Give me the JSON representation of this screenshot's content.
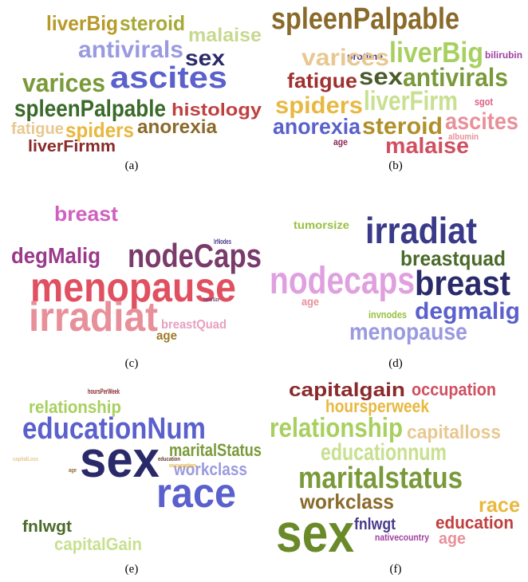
{
  "panels": [
    {
      "caption": "(a)",
      "words": [
        "liverBig",
        "steroid",
        "malaise",
        "antivirals",
        "sex",
        "ascites",
        "varices",
        "spleenPalpable",
        "histology",
        "fatigue",
        "spiders",
        "anorexia",
        "liverFirmm"
      ]
    },
    {
      "caption": "(b)",
      "words": [
        "spleenPalpable",
        "protime",
        "varices",
        "liverBig",
        "bilirubin",
        "fatigue",
        "sex",
        "antivirals",
        "spiders",
        "liverFirm",
        "sgot",
        "anorexia",
        "steroid",
        "ascites",
        "albumin",
        "age",
        "malaise"
      ]
    },
    {
      "caption": "(c)",
      "words": [
        "breast",
        "degMalig",
        "lrNodes",
        "nodeCaps",
        "menopause",
        "tumorSize",
        "irradiat",
        "breastQuad",
        "age"
      ]
    },
    {
      "caption": "(d)",
      "words": [
        "tumorsize",
        "irradiat",
        "breastquad",
        "nodecaps",
        "breast",
        "age",
        "invnodes",
        "degmalig",
        "menopause"
      ]
    },
    {
      "caption": "(e)",
      "words": [
        "hoursPerWeek",
        "relationship",
        "educationNum",
        "sex",
        "maritalStatus",
        "workclass",
        "race",
        "capitalLoss",
        "education",
        "occupation",
        "age",
        "fnlwgt",
        "capitalGain"
      ]
    },
    {
      "caption": "(f)",
      "words": [
        "capitalgain",
        "occupation",
        "hoursperweek",
        "relationship",
        "capitalloss",
        "educationnum",
        "maritalstatus",
        "workclass",
        "race",
        "sex",
        "fnlwgt",
        "education",
        "nativecountry",
        "age"
      ]
    }
  ]
}
